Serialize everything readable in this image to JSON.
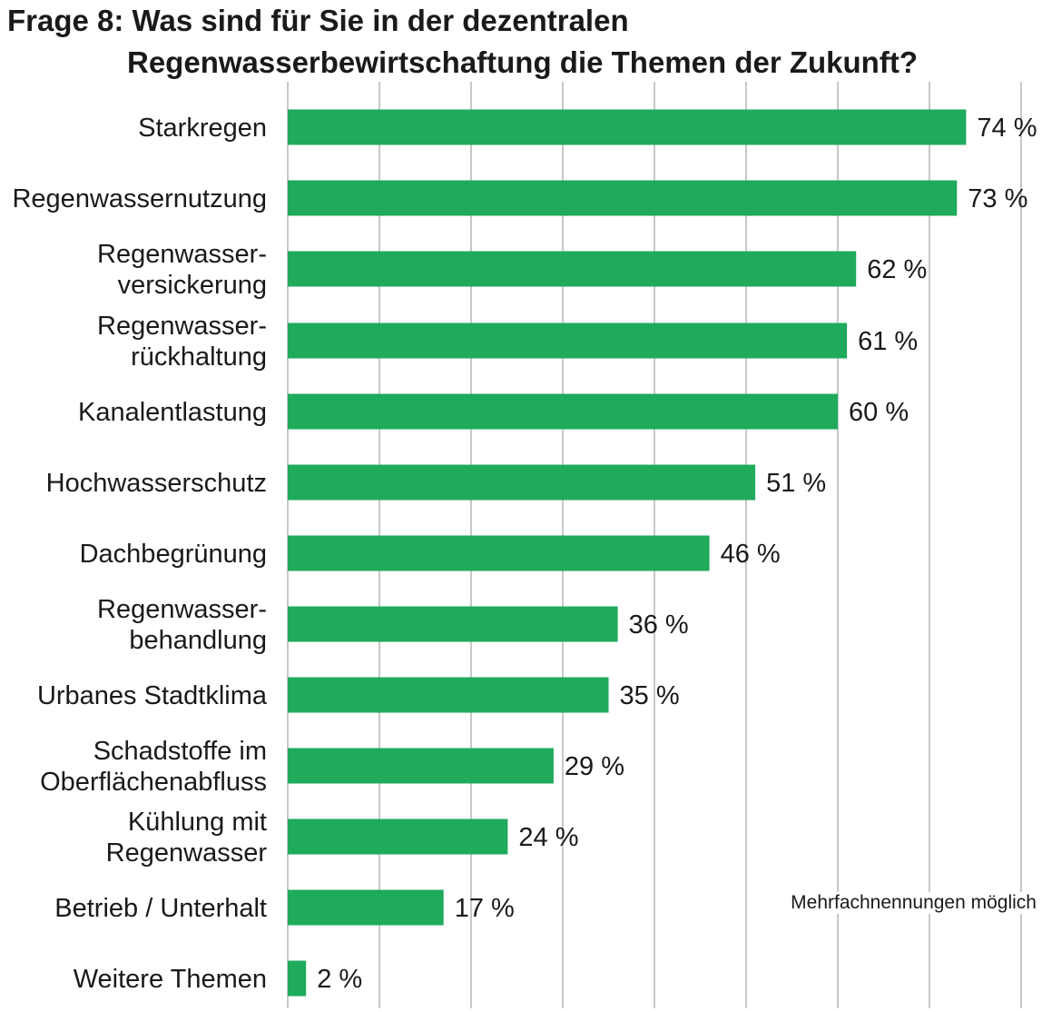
{
  "title_line1": "Frage 8: Was sind für Sie in der dezentralen",
  "title_line2": "Regenwasserbewirtschaftung die Themen der Zukunft?",
  "note": "Mehrfachnennungen möglich",
  "colors": {
    "bar": "#1faa5c",
    "grid": "#c8c8c8"
  },
  "chart_data": {
    "type": "bar",
    "orientation": "horizontal",
    "categories": [
      [
        "Starkregen"
      ],
      [
        "Regenwassernutzung"
      ],
      [
        "Regenwasser-",
        "versickerung"
      ],
      [
        "Regenwasser-",
        "rückhaltung"
      ],
      [
        "Kanalentlastung"
      ],
      [
        "Hochwasserschutz"
      ],
      [
        "Dachbegrünung"
      ],
      [
        "Regenwasser-",
        "behandlung"
      ],
      [
        "Urbanes Stadtklima"
      ],
      [
        "Schadstoffe im",
        "Oberflächenabfluss"
      ],
      [
        "Kühlung mit",
        "Regenwasser"
      ],
      [
        "Betrieb / Unterhalt"
      ],
      [
        "Weitere Themen"
      ]
    ],
    "values": [
      74,
      73,
      62,
      61,
      60,
      51,
      46,
      36,
      35,
      29,
      24,
      17,
      2
    ],
    "value_labels": [
      "74 %",
      "73 %",
      "62 %",
      "61 %",
      "60 %",
      "51 %",
      "46 %",
      "36 %",
      "35 %",
      "29 %",
      "24 %",
      "17 %",
      "2 %"
    ],
    "unit": "%",
    "xlim": [
      0,
      80
    ],
    "grid_step": 10,
    "grid": true
  }
}
